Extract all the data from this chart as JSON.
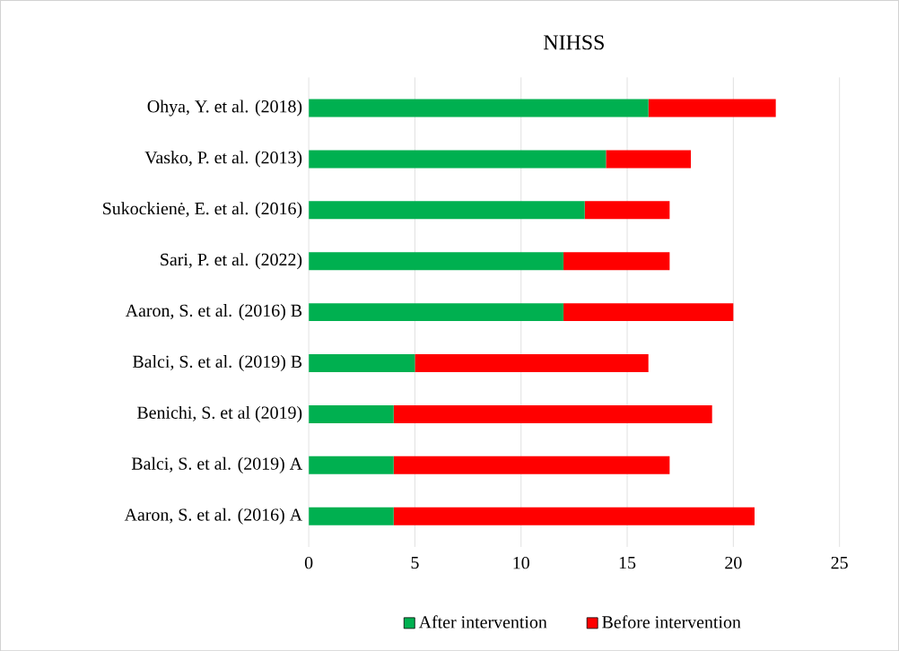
{
  "chart_data": {
    "type": "bar",
    "orientation": "horizontal",
    "stacked": true,
    "title": "NIHSS",
    "categories": [
      "Ohya, Y. et al. (2018)",
      "Vasko, P. et al. (2013)",
      "Sukockienė, E. et al. (2016)",
      "Sari, P. et al. (2022)",
      "Aaron, S. et al. (2016) B",
      "Balci, S. et al. (2019) B",
      "Benichi, S. et al (2019)",
      "Balci, S. et al. (2019) A",
      "Aaron, S. et al. (2016) A"
    ],
    "series": [
      {
        "name": "After intervention",
        "color": "#00b050",
        "values": [
          16,
          14,
          13,
          12,
          12,
          5,
          4,
          4,
          4
        ]
      },
      {
        "name": "Before intervention",
        "color": "#ff0000",
        "values": [
          6,
          4,
          4,
          5,
          8,
          11,
          15,
          13,
          17
        ]
      }
    ],
    "xlim": [
      0,
      25
    ],
    "xticks": [
      0,
      5,
      10,
      15,
      20,
      25
    ],
    "grid": "x",
    "legend": "bottom"
  }
}
